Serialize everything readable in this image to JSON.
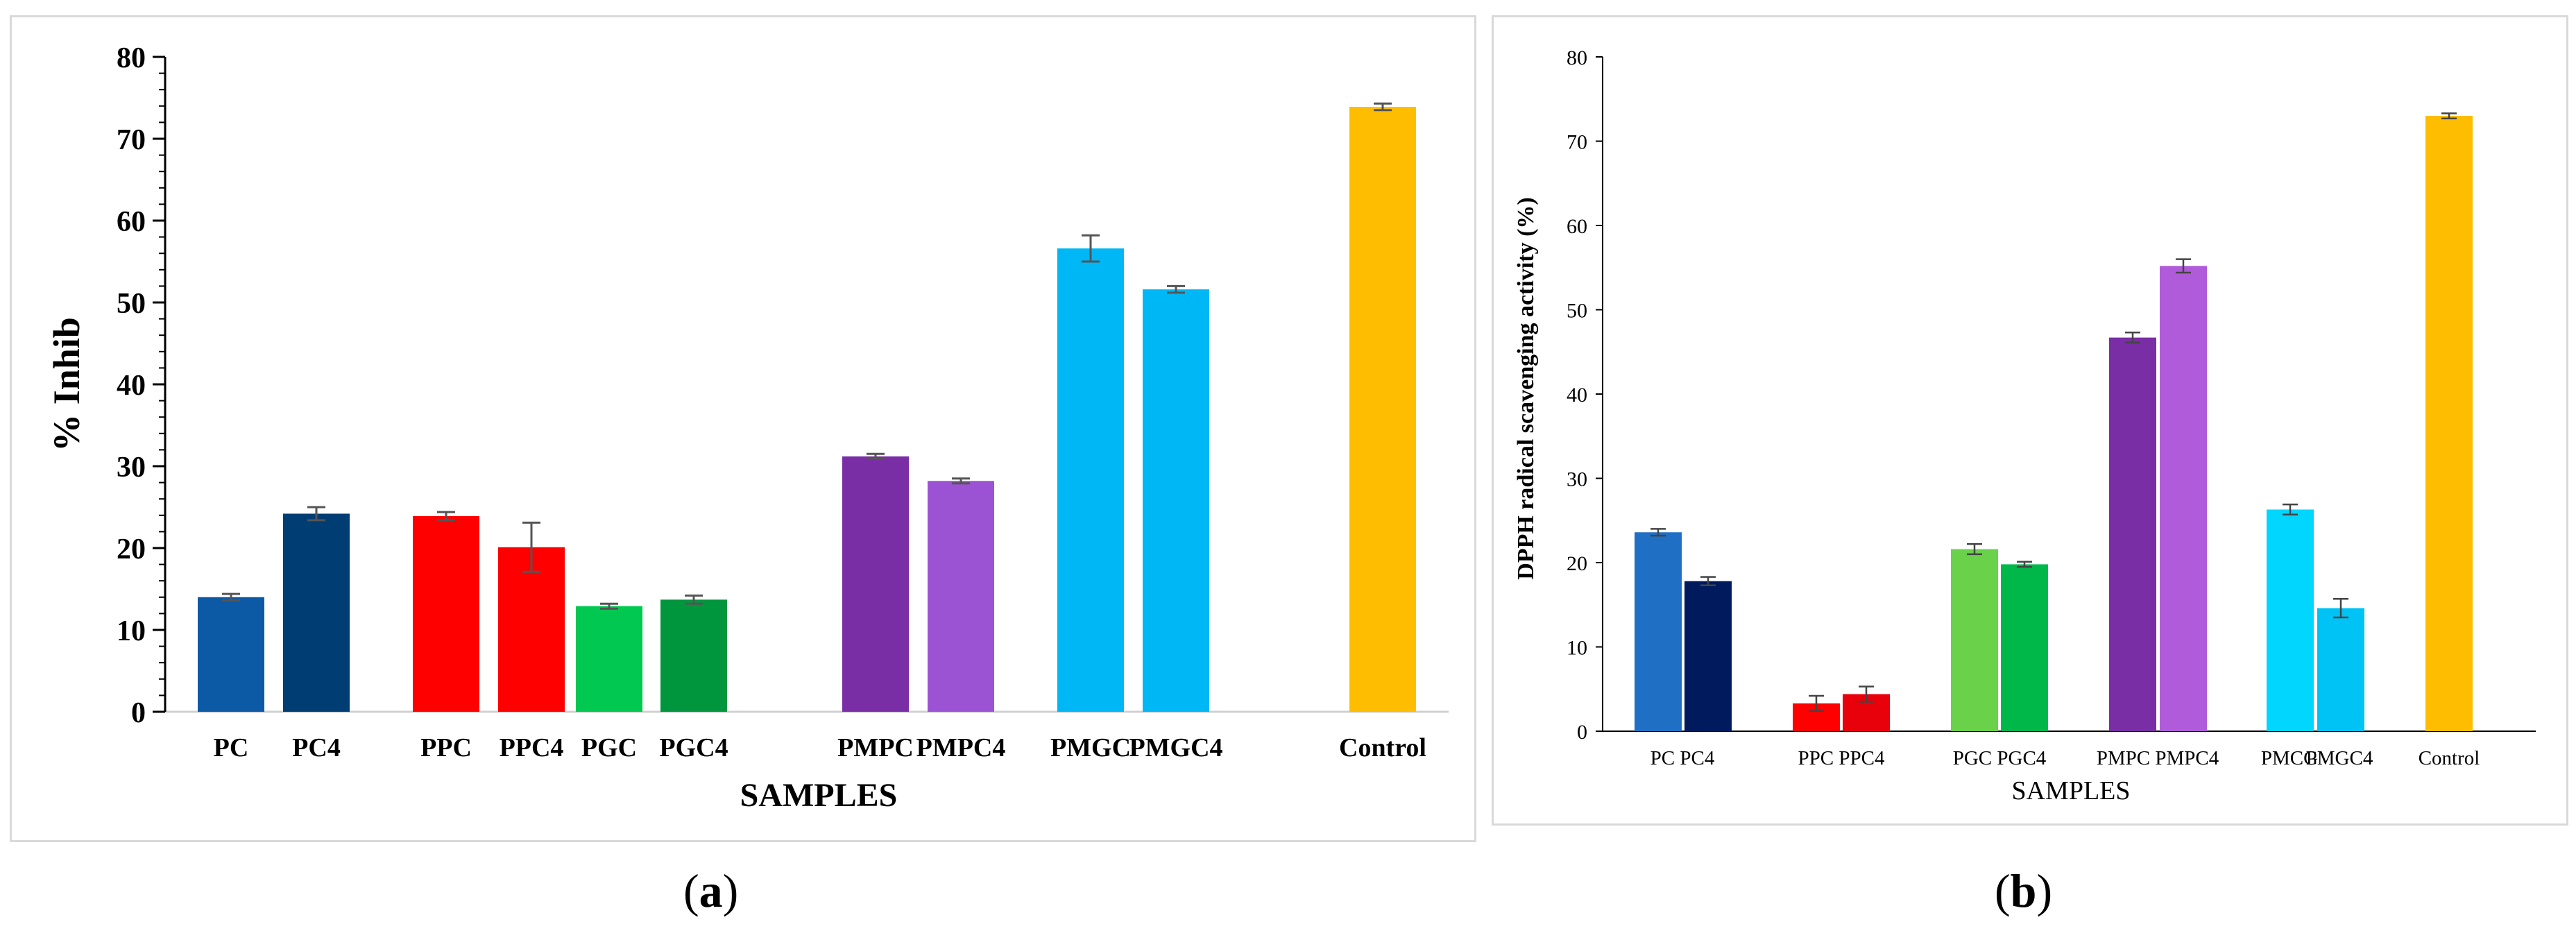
{
  "chart_data": [
    {
      "panel": "a",
      "type": "bar",
      "title": "",
      "xlabel": "SAMPLES",
      "ylabel": "% Inhib",
      "ylim": [
        0,
        80
      ],
      "yticks": [
        0,
        10,
        20,
        30,
        40,
        50,
        60,
        70,
        80
      ],
      "grid": false,
      "categories": [
        "PC",
        "PC4",
        "PPC",
        "PPC4",
        "PGC",
        "PGC4",
        "PMPC",
        "PMPC4",
        "PMGC",
        "PMGC4",
        "Control"
      ],
      "values": [
        14.0,
        24.2,
        23.9,
        20.1,
        12.9,
        13.7,
        31.2,
        28.2,
        56.6,
        51.6,
        73.9
      ],
      "errors": [
        0.4,
        0.8,
        0.5,
        3.0,
        0.3,
        0.5,
        0.3,
        0.3,
        1.6,
        0.4,
        0.4
      ],
      "colors": [
        "#0c5aa6",
        "#003d73",
        "#ff0000",
        "#ff0000",
        "#00c851",
        "#00963d",
        "#7a2ea6",
        "#9c53d3",
        "#00b7f5",
        "#00b7f5",
        "#ffbd00"
      ]
    },
    {
      "panel": "b",
      "type": "bar",
      "title": "",
      "xlabel": "SAMPLES",
      "ylabel": "DPPH radical scavenging activity (%)",
      "ylim": [
        0,
        80
      ],
      "yticks": [
        0,
        10,
        20,
        30,
        40,
        50,
        60,
        70,
        80
      ],
      "grid": false,
      "categories": [
        "PC",
        "PC4",
        "PPC",
        "PPC4",
        "PGC",
        "PGC4",
        "PMPC",
        "PMPC4",
        "PMCG",
        "PMGC4",
        "Control"
      ],
      "category_group_labels": [
        "PC PC4",
        "PPC PPC4",
        "PGC PGC4",
        "PMPC PMPC4",
        "PMCG",
        "PMGC4",
        "Control"
      ],
      "values": [
        23.6,
        17.8,
        3.3,
        4.4,
        21.6,
        19.8,
        46.7,
        55.2,
        26.3,
        14.6,
        73.0
      ],
      "errors": [
        0.4,
        0.5,
        0.9,
        0.9,
        0.6,
        0.3,
        0.6,
        0.8,
        0.6,
        1.1,
        0.3
      ],
      "colors": [
        "#1f6fc5",
        "#001a5e",
        "#ff0000",
        "#e8000a",
        "#6ad14a",
        "#00b84a",
        "#7a2ea6",
        "#b05bd9",
        "#00d6ff",
        "#00c3f5",
        "#ffbd00"
      ]
    }
  ],
  "panel_labels": {
    "a": {
      "open": "(",
      "letter": "a",
      "close": ")"
    },
    "b": {
      "open": "(",
      "letter": "b",
      "close": ")"
    }
  }
}
